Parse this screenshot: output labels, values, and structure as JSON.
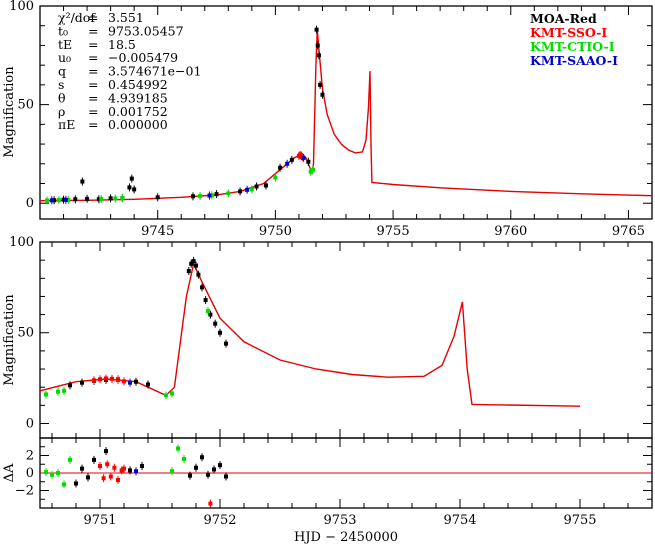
{
  "chart_data": [
    {
      "type": "line",
      "panel": "top",
      "ylabel": "Magnification",
      "xlim": [
        9740.0,
        9766.0
      ],
      "ylim": [
        -8,
        100
      ],
      "xticks": [
        9745,
        9750,
        9755,
        9760,
        9765
      ],
      "yticks": [
        0,
        50,
        100
      ],
      "params": [
        {
          "key": "χ²/dof",
          "value": "3.551"
        },
        {
          "key": "t₀",
          "value": "9753.05457"
        },
        {
          "key": "tE",
          "value": "18.5"
        },
        {
          "key": "u₀",
          "value": "−0.005479"
        },
        {
          "key": "q",
          "value": "3.574671e−01"
        },
        {
          "key": "s",
          "value": "0.454992"
        },
        {
          "key": "θ",
          "value": "4.939185"
        },
        {
          "key": "ρ",
          "value": "0.001752"
        },
        {
          "key": "πE",
          "value": "0.000000"
        }
      ],
      "legend": [
        {
          "name": "MOA-Red",
          "color": "#000000"
        },
        {
          "name": "KMT-SSO-I",
          "color": "#ff0000"
        },
        {
          "name": "KMT-CTIO-I",
          "color": "#00dd00"
        },
        {
          "name": "KMT-SAAO-I",
          "color": "#0000cc"
        }
      ],
      "model": [
        [
          9740.0,
          1.3
        ],
        [
          9742.0,
          1.5
        ],
        [
          9744.0,
          2.0
        ],
        [
          9746.0,
          3.0
        ],
        [
          9747.5,
          4.2
        ],
        [
          9748.5,
          6.0
        ],
        [
          9749.5,
          10.0
        ],
        [
          9750.3,
          18.0
        ],
        [
          9750.8,
          23.0
        ],
        [
          9751.05,
          24.5
        ],
        [
          9751.3,
          23.0
        ],
        [
          9751.55,
          15.5
        ],
        [
          9751.62,
          20.0
        ],
        [
          9751.72,
          70.0
        ],
        [
          9751.78,
          88.0
        ],
        [
          9751.85,
          78.0
        ],
        [
          9752.0,
          58.0
        ],
        [
          9752.2,
          45.0
        ],
        [
          9752.5,
          35.0
        ],
        [
          9752.8,
          30.0
        ],
        [
          9753.1,
          27.0
        ],
        [
          9753.4,
          25.5
        ],
        [
          9753.7,
          26.0
        ],
        [
          9753.85,
          32.0
        ],
        [
          9753.95,
          48.0
        ],
        [
          9754.02,
          67.0
        ],
        [
          9754.06,
          30.0
        ],
        [
          9754.1,
          10.5
        ],
        [
          9755.0,
          9.5
        ],
        [
          9757.0,
          7.8
        ],
        [
          9760.0,
          6.0
        ],
        [
          9763.0,
          4.8
        ],
        [
          9766.0,
          3.8
        ]
      ],
      "series": [
        {
          "name": "MOA-Red",
          "x": [
            9740.6,
            9741.0,
            9741.5,
            9741.8,
            9742.0,
            9742.5,
            9743.0,
            9743.5,
            9743.8,
            9743.9,
            9744.0,
            9745.0,
            9746.5,
            9747.5,
            9748.5,
            9749.2,
            9749.6,
            9750.2,
            9750.7,
            9751.1,
            9751.4,
            9751.75,
            9751.8,
            9751.85,
            9751.9,
            9752.0
          ],
          "y": [
            1.5,
            1.8,
            2.0,
            11.0,
            2.2,
            2.0,
            2.5,
            2.6,
            8.0,
            12.5,
            7.0,
            3.0,
            3.5,
            4.6,
            6.0,
            8.5,
            9.0,
            18.0,
            22.0,
            24.0,
            21.0,
            88.0,
            80.0,
            75.0,
            60.0,
            55.0
          ]
        },
        {
          "name": "KMT-SSO-I",
          "x": [
            9751.0,
            9751.05,
            9751.1,
            9751.15
          ],
          "y": [
            24.0,
            24.5,
            24.2,
            23.5
          ]
        },
        {
          "name": "KMT-CTIO-I",
          "x": [
            9740.3,
            9740.8,
            9741.2,
            9742.6,
            9743.2,
            9743.5,
            9746.8,
            9747.3,
            9748.0,
            9749.0,
            9750.0,
            9751.5,
            9751.6
          ],
          "y": [
            1.4,
            1.6,
            1.7,
            2.1,
            2.4,
            2.6,
            3.6,
            4.0,
            5.0,
            7.0,
            13.0,
            16.0,
            17.0
          ]
        },
        {
          "name": "KMT-SAAO-I",
          "x": [
            9740.5,
            9741.1,
            9747.2,
            9748.8,
            9750.5,
            9751.2
          ],
          "y": [
            1.5,
            1.7,
            3.9,
            6.8,
            20.0,
            23.0
          ]
        }
      ]
    },
    {
      "type": "line",
      "panel": "zoom",
      "ylabel": "Magnification",
      "xlim": [
        9750.5,
        9755.6
      ],
      "ylim": [
        -8,
        100
      ],
      "yticks": [
        0,
        50,
        100
      ],
      "series": [
        {
          "name": "MOA-Red",
          "x": [
            9750.75,
            9750.85,
            9750.95,
            9751.05,
            9751.15,
            9751.3,
            9751.4,
            9751.74,
            9751.76,
            9751.78,
            9751.8,
            9751.82,
            9751.85,
            9751.88,
            9751.92,
            9751.96,
            9752.0,
            9752.05
          ],
          "y": [
            21.0,
            22.5,
            23.5,
            24.0,
            24.3,
            23.0,
            21.5,
            84.0,
            88.0,
            89.5,
            87.0,
            82.0,
            75.0,
            68.0,
            60.0,
            55.0,
            50.0,
            44.0
          ]
        },
        {
          "name": "KMT-SSO-I",
          "x": [
            9750.95,
            9751.0,
            9751.05,
            9751.1,
            9751.15,
            9751.2
          ],
          "y": [
            23.8,
            24.4,
            24.8,
            24.6,
            24.0,
            23.2
          ]
        },
        {
          "name": "KMT-CTIO-I",
          "x": [
            9750.55,
            9750.65,
            9750.7,
            9751.55,
            9751.6,
            9751.9
          ],
          "y": [
            16.0,
            17.5,
            18.0,
            15.5,
            16.5,
            62.0
          ]
        },
        {
          "name": "KMT-SAAO-I",
          "x": [
            9751.25
          ],
          "y": [
            22.5
          ]
        }
      ]
    },
    {
      "type": "scatter",
      "panel": "residuals",
      "xlabel": "HJD − 2450000",
      "ylabel": "ΔA",
      "xlim": [
        9750.5,
        9755.6
      ],
      "ylim": [
        -4,
        4
      ],
      "xticks": [
        9751,
        9752,
        9753,
        9754,
        9755
      ],
      "yticks": [
        -2,
        0,
        2
      ],
      "series": [
        {
          "name": "MOA-Red",
          "x": [
            9750.8,
            9750.85,
            9750.9,
            9750.95,
            9751.05,
            9751.25,
            9751.35,
            9751.75,
            9751.8,
            9751.85,
            9751.9,
            9751.95,
            9752.0,
            9752.05
          ],
          "y": [
            -1.2,
            0.5,
            -0.5,
            1.5,
            2.5,
            0.3,
            0.8,
            -0.3,
            0.6,
            1.8,
            -0.2,
            0.4,
            0.9,
            -0.4
          ]
        },
        {
          "name": "KMT-SSO-I",
          "x": [
            9751.0,
            9751.03,
            9751.06,
            9751.09,
            9751.12,
            9751.15,
            9751.18,
            9751.2,
            9751.92
          ],
          "y": [
            0.8,
            -0.6,
            1.0,
            -0.4,
            0.6,
            -0.8,
            0.3,
            0.5,
            -3.5
          ]
        },
        {
          "name": "KMT-CTIO-I",
          "x": [
            9750.55,
            9750.6,
            9750.65,
            9750.7,
            9750.75,
            9751.6,
            9751.65,
            9751.7
          ],
          "y": [
            0.1,
            -0.2,
            0.0,
            -1.3,
            1.5,
            0.2,
            2.8,
            1.6
          ]
        },
        {
          "name": "KMT-SAAO-I",
          "x": [
            9751.3
          ],
          "y": [
            0.2
          ]
        }
      ]
    }
  ],
  "colors": {
    "model": "#e60000",
    "zero_line": "#e60000"
  }
}
